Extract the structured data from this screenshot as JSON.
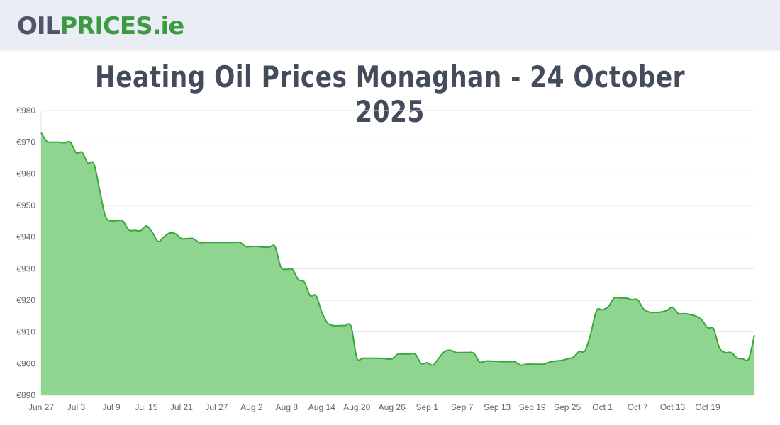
{
  "header": {
    "logo_part1": "OIL",
    "logo_part2": "PRICES",
    "logo_part3": ".ie"
  },
  "page": {
    "title": "Heating Oil Prices Monaghan - 24 October 2025"
  },
  "colors": {
    "line": "#3aa63c",
    "fill": "#8fd58f",
    "grid": "#e6e6e6",
    "logo_dark": "#4d5566",
    "logo_green": "#3c9a42"
  },
  "chart_data": {
    "type": "area",
    "title": "Heating Oil Prices Monaghan - 24 October 2025",
    "xlabel": "",
    "ylabel": "",
    "ylim": [
      890,
      980
    ],
    "y_ticks": [
      890,
      900,
      910,
      920,
      930,
      940,
      950,
      960,
      970,
      980
    ],
    "y_tick_prefix": "€",
    "grid": true,
    "x_tick_labels": [
      "Jun 27",
      "Jul 3",
      "Jul 9",
      "Jul 15",
      "Jul 21",
      "Jul 27",
      "Aug 2",
      "Aug 8",
      "Aug 14",
      "Aug 20",
      "Aug 26",
      "Sep 1",
      "Sep 7",
      "Sep 13",
      "Sep 19",
      "Sep 25",
      "Oct 1",
      "Oct 7",
      "Oct 13",
      "Oct 19"
    ],
    "x_start": "Jun 27",
    "x_end": "Oct 24",
    "series": [
      {
        "values": [
          973.0,
          970.2,
          970.0,
          970.0,
          969.8,
          970.0,
          966.6,
          966.8,
          963.4,
          963.3,
          955.0,
          946.5,
          945.1,
          945.2,
          945.0,
          942.2,
          942.1,
          942.0,
          943.5,
          941.5,
          938.6,
          940.0,
          941.3,
          941.0,
          939.5,
          939.5,
          939.5,
          938.3,
          938.3,
          938.3,
          938.3,
          938.3,
          938.3,
          938.3,
          938.3,
          937.0,
          937.0,
          937.0,
          936.8,
          936.8,
          937.0,
          930.5,
          929.8,
          929.8,
          926.5,
          925.8,
          921.5,
          921.5,
          916.3,
          912.8,
          912.0,
          912.0,
          912.0,
          911.8,
          901.8,
          901.7,
          901.7,
          901.7,
          901.7,
          901.5,
          901.5,
          903.0,
          903.0,
          903.0,
          903.0,
          900.0,
          900.3,
          899.5,
          901.7,
          903.8,
          904.2,
          903.5,
          903.5,
          903.5,
          903.3,
          900.5,
          900.8,
          900.8,
          900.7,
          900.6,
          900.6,
          900.6,
          899.5,
          899.8,
          899.8,
          899.8,
          899.8,
          900.5,
          900.8,
          901.0,
          901.5,
          902.0,
          903.8,
          904.0,
          909.5,
          916.8,
          917.0,
          918.0,
          920.7,
          920.7,
          920.7,
          920.2,
          920.2,
          917.3,
          916.3,
          916.2,
          916.3,
          916.8,
          917.8,
          915.8,
          915.8,
          915.5,
          915.0,
          913.8,
          911.3,
          911.0,
          905.0,
          903.5,
          903.5,
          901.8,
          901.5,
          901.5,
          909.0
        ]
      }
    ]
  }
}
